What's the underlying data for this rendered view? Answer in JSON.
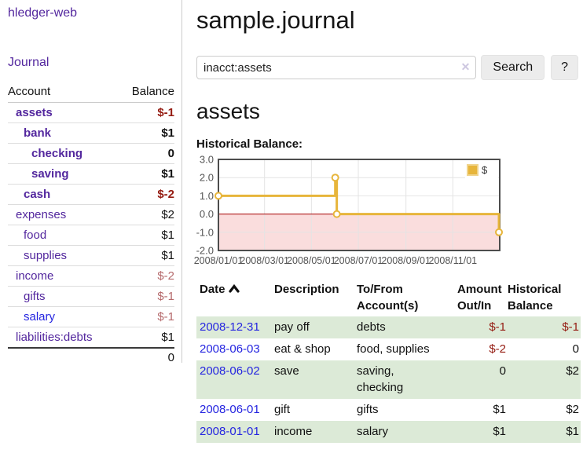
{
  "app": {
    "brand": "hledger-web"
  },
  "nav": {
    "journal": "Journal"
  },
  "sidebar": {
    "account_header": "Account",
    "balance_header": "Balance",
    "accounts": [
      {
        "name": "assets",
        "depth": 1,
        "bold": true,
        "balance": "$-1",
        "tone": "neg"
      },
      {
        "name": "bank",
        "depth": 2,
        "bold": true,
        "balance": "$1",
        "tone": "plain"
      },
      {
        "name": "checking",
        "depth": 3,
        "bold": true,
        "balance": "0",
        "tone": "plain"
      },
      {
        "name": "saving",
        "depth": 3,
        "bold": true,
        "balance": "$1",
        "tone": "plain"
      },
      {
        "name": "cash",
        "depth": 2,
        "bold": true,
        "balance": "$-2",
        "tone": "neg"
      },
      {
        "name": "expenses",
        "depth": 1,
        "bold": false,
        "balance": "$2",
        "tone": "plain"
      },
      {
        "name": "food",
        "depth": 2,
        "bold": false,
        "balance": "$1",
        "tone": "plain"
      },
      {
        "name": "supplies",
        "depth": 2,
        "bold": false,
        "balance": "$1",
        "tone": "plain"
      },
      {
        "name": "income",
        "depth": 1,
        "bold": false,
        "balance": "$-2",
        "tone": "negsoft"
      },
      {
        "name": "gifts",
        "depth": 2,
        "bold": false,
        "balance": "$-1",
        "tone": "negsoft"
      },
      {
        "name": "salary",
        "depth": 2,
        "bold": false,
        "balance": "$-1",
        "tone": "negsoft",
        "link_tone": "blue"
      },
      {
        "name": "liabilities:debts",
        "depth": 1,
        "bold": false,
        "balance": "$1",
        "tone": "plain"
      }
    ],
    "total": "0"
  },
  "header": {
    "title": "sample.journal"
  },
  "search": {
    "value": "inacct:assets",
    "clear_icon": "✕",
    "search_button": "Search",
    "help_button": "?"
  },
  "account_page": {
    "heading": "assets",
    "chart_title": "Historical Balance:"
  },
  "chart_data": {
    "type": "line",
    "title": "Historical Balance:",
    "step": true,
    "series": [
      {
        "name": "$",
        "color": "#e7b53b",
        "points": [
          [
            "2008-01-01",
            1
          ],
          [
            "2008-06-01",
            2
          ],
          [
            "2008-06-03",
            0
          ],
          [
            "2008-12-31",
            -1
          ]
        ]
      }
    ],
    "x_range": [
      "2008-01-01",
      "2009-01-01"
    ],
    "ylim": [
      -2,
      3
    ],
    "x_ticks": [
      "2008/01/01",
      "2008/03/01",
      "2008/05/01",
      "2008/07/01",
      "2008/09/01",
      "2008/11/01"
    ],
    "y_ticks": [
      3,
      2,
      1,
      0,
      -1,
      -2
    ],
    "grid": true,
    "legend": {
      "position": "top-right",
      "label": "$",
      "color": "#e7b53b"
    },
    "negative_region_color": "#fadddd",
    "zero_line_color": "#a40000",
    "xlabel": "",
    "ylabel": ""
  },
  "register": {
    "columns": {
      "date": "Date",
      "description": "Description",
      "tofrom": "To/From\nAccount(s)",
      "amount": "Amount\nOut/In",
      "balance": "Historical\nBalance"
    },
    "sort": {
      "column": "date",
      "direction": "ascending",
      "icon": "chevron-up"
    },
    "rows": [
      {
        "date": "2008-12-31",
        "description": "pay off",
        "accounts": "debts",
        "amount": "$-1",
        "amount_tone": "neg",
        "balance": "$-1",
        "balance_tone": "neg"
      },
      {
        "date": "2008-06-03",
        "description": "eat & shop",
        "accounts": "food, supplies",
        "amount": "$-2",
        "amount_tone": "neg",
        "balance": "0",
        "balance_tone": "plain"
      },
      {
        "date": "2008-06-02",
        "description": "save",
        "accounts": "saving,\nchecking",
        "amount": "0",
        "amount_tone": "plain",
        "balance": "$2",
        "balance_tone": "plain"
      },
      {
        "date": "2008-06-01",
        "description": "gift",
        "accounts": "gifts",
        "amount": "$1",
        "amount_tone": "plain",
        "balance": "$2",
        "balance_tone": "plain"
      },
      {
        "date": "2008-01-01",
        "description": "income",
        "accounts": "salary",
        "amount": "$1",
        "amount_tone": "plain",
        "balance": "$1",
        "balance_tone": "plain"
      }
    ]
  },
  "colors": {
    "accent_purple": "#53279e",
    "link_blue": "#2525e0",
    "negative_strong": "#941a10",
    "negative_soft": "#b5696b",
    "row_green": "#dcead7",
    "series_gold": "#e7b53b"
  }
}
